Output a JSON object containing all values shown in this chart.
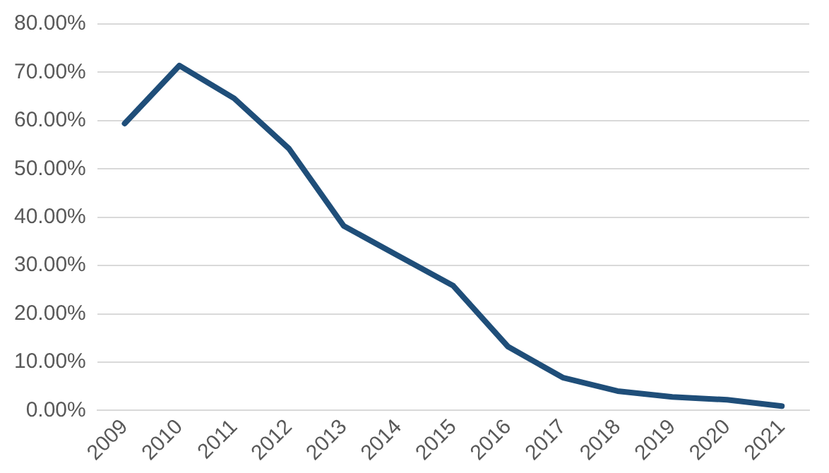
{
  "chart_data": {
    "type": "line",
    "categories": [
      "2009",
      "2010",
      "2011",
      "2012",
      "2013",
      "2014",
      "2015",
      "2016",
      "2017",
      "2018",
      "2019",
      "2020",
      "2021"
    ],
    "series": [
      {
        "color": "#1f4e79",
        "values": [
          59.4,
          71.4,
          64.6,
          54.2,
          38.2,
          32,
          25.8,
          13.2,
          6.8,
          4,
          2.8,
          2.2,
          0.9
        ]
      }
    ],
    "ylim": [
      0,
      80
    ],
    "yticks": [
      {
        "value": 0,
        "label": "0.00%"
      },
      {
        "value": 10,
        "label": "10.00%"
      },
      {
        "value": 20,
        "label": "20.00%"
      },
      {
        "value": 30,
        "label": "30.00%"
      },
      {
        "value": 40,
        "label": "40.00%"
      },
      {
        "value": 50,
        "label": "50.00%"
      },
      {
        "value": 60,
        "label": "60.00%"
      },
      {
        "value": 70,
        "label": "70.00%"
      },
      {
        "value": 80,
        "label": "80.00%"
      }
    ],
    "grid": "y",
    "legend": false,
    "marker": "none",
    "line_style": "solid"
  }
}
